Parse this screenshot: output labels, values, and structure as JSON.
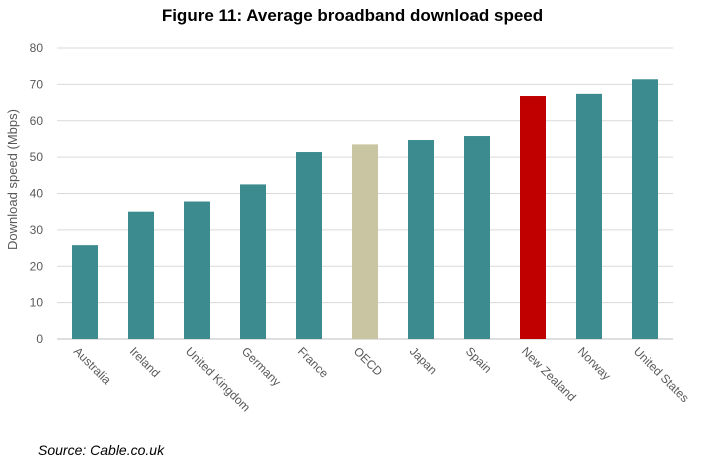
{
  "chart_data": {
    "type": "bar",
    "title": "Figure 11: Average broadband download speed",
    "xlabel": "",
    "ylabel": "Download speed (Mbps)",
    "ylim": [
      0,
      80
    ],
    "yticks": [
      0,
      10,
      20,
      30,
      40,
      50,
      60,
      70,
      80
    ],
    "grid": true,
    "categories": [
      "Australia",
      "Ireland",
      "United Kingdom",
      "Germany",
      "France",
      "OECD",
      "Japan",
      "Spain",
      "New Zealand",
      "Norway",
      "United States"
    ],
    "values": [
      25.8,
      35.0,
      37.8,
      42.5,
      51.4,
      53.5,
      54.7,
      55.8,
      66.8,
      67.4,
      71.4
    ],
    "colors": [
      "#3c8b8f",
      "#3c8b8f",
      "#3c8b8f",
      "#3c8b8f",
      "#3c8b8f",
      "#c9c5a2",
      "#3c8b8f",
      "#3c8b8f",
      "#c00000",
      "#3c8b8f",
      "#3c8b8f"
    ]
  },
  "source": "Source: Cable.co.uk"
}
